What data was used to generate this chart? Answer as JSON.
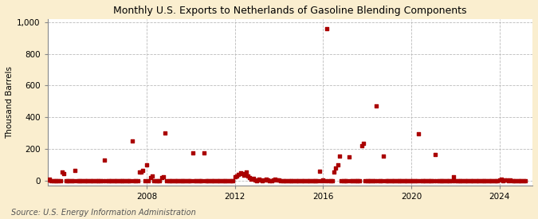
{
  "title": "Monthly U.S. Exports to Netherlands of Gasoline Blending Components",
  "ylabel": "Thousand Barrels",
  "source": "Source: U.S. Energy Information Administration",
  "xlim": [
    2003.5,
    2025.5
  ],
  "ylim": [
    -30,
    1020
  ],
  "yticks": [
    0,
    200,
    400,
    600,
    800,
    1000
  ],
  "ytick_labels": [
    "0",
    "200",
    "400",
    "600",
    "800",
    "1,000"
  ],
  "xticks": [
    2008,
    2012,
    2016,
    2020,
    2024
  ],
  "background_color": "#faeecf",
  "plot_bg_color": "#ffffff",
  "dot_color": "#aa0000",
  "dot_size": 9,
  "data_points": [
    [
      2003.0,
      0
    ],
    [
      2003.083,
      0
    ],
    [
      2003.167,
      0
    ],
    [
      2003.25,
      0
    ],
    [
      2003.333,
      2
    ],
    [
      2003.417,
      0
    ],
    [
      2003.5,
      5
    ],
    [
      2003.583,
      8
    ],
    [
      2003.667,
      0
    ],
    [
      2003.75,
      0
    ],
    [
      2003.833,
      0
    ],
    [
      2003.917,
      0
    ],
    [
      2004.0,
      0
    ],
    [
      2004.083,
      0
    ],
    [
      2004.167,
      55
    ],
    [
      2004.25,
      45
    ],
    [
      2004.333,
      0
    ],
    [
      2004.417,
      0
    ],
    [
      2004.5,
      0
    ],
    [
      2004.583,
      0
    ],
    [
      2004.667,
      0
    ],
    [
      2004.75,
      65
    ],
    [
      2004.833,
      0
    ],
    [
      2004.917,
      0
    ],
    [
      2005.0,
      0
    ],
    [
      2005.083,
      0
    ],
    [
      2005.167,
      0
    ],
    [
      2005.25,
      0
    ],
    [
      2005.333,
      0
    ],
    [
      2005.417,
      0
    ],
    [
      2005.5,
      0
    ],
    [
      2005.583,
      0
    ],
    [
      2005.667,
      0
    ],
    [
      2005.75,
      0
    ],
    [
      2005.833,
      0
    ],
    [
      2005.917,
      0
    ],
    [
      2006.0,
      0
    ],
    [
      2006.083,
      130
    ],
    [
      2006.167,
      0
    ],
    [
      2006.25,
      0
    ],
    [
      2006.333,
      0
    ],
    [
      2006.417,
      0
    ],
    [
      2006.5,
      0
    ],
    [
      2006.583,
      0
    ],
    [
      2006.667,
      0
    ],
    [
      2006.75,
      0
    ],
    [
      2006.833,
      0
    ],
    [
      2006.917,
      0
    ],
    [
      2007.0,
      0
    ],
    [
      2007.083,
      0
    ],
    [
      2007.167,
      0
    ],
    [
      2007.25,
      0
    ],
    [
      2007.333,
      250
    ],
    [
      2007.417,
      0
    ],
    [
      2007.5,
      0
    ],
    [
      2007.583,
      0
    ],
    [
      2007.667,
      55
    ],
    [
      2007.75,
      55
    ],
    [
      2007.833,
      65
    ],
    [
      2007.917,
      0
    ],
    [
      2008.0,
      100
    ],
    [
      2008.083,
      0
    ],
    [
      2008.167,
      20
    ],
    [
      2008.25,
      30
    ],
    [
      2008.333,
      0
    ],
    [
      2008.417,
      0
    ],
    [
      2008.5,
      0
    ],
    [
      2008.583,
      0
    ],
    [
      2008.667,
      20
    ],
    [
      2008.75,
      25
    ],
    [
      2008.833,
      300
    ],
    [
      2008.917,
      0
    ],
    [
      2009.0,
      0
    ],
    [
      2009.083,
      0
    ],
    [
      2009.167,
      0
    ],
    [
      2009.25,
      0
    ],
    [
      2009.333,
      0
    ],
    [
      2009.417,
      0
    ],
    [
      2009.5,
      0
    ],
    [
      2009.583,
      0
    ],
    [
      2009.667,
      0
    ],
    [
      2009.75,
      0
    ],
    [
      2009.833,
      0
    ],
    [
      2009.917,
      0
    ],
    [
      2010.0,
      0
    ],
    [
      2010.083,
      175
    ],
    [
      2010.167,
      0
    ],
    [
      2010.25,
      0
    ],
    [
      2010.333,
      0
    ],
    [
      2010.417,
      0
    ],
    [
      2010.5,
      0
    ],
    [
      2010.583,
      175
    ],
    [
      2010.667,
      0
    ],
    [
      2010.75,
      0
    ],
    [
      2010.833,
      0
    ],
    [
      2010.917,
      0
    ],
    [
      2011.0,
      0
    ],
    [
      2011.083,
      0
    ],
    [
      2011.167,
      0
    ],
    [
      2011.25,
      0
    ],
    [
      2011.333,
      0
    ],
    [
      2011.417,
      0
    ],
    [
      2011.5,
      0
    ],
    [
      2011.583,
      0
    ],
    [
      2011.667,
      0
    ],
    [
      2011.75,
      0
    ],
    [
      2011.833,
      0
    ],
    [
      2011.917,
      0
    ],
    [
      2012.0,
      25
    ],
    [
      2012.083,
      30
    ],
    [
      2012.167,
      40
    ],
    [
      2012.25,
      50
    ],
    [
      2012.333,
      45
    ],
    [
      2012.417,
      35
    ],
    [
      2012.5,
      55
    ],
    [
      2012.583,
      30
    ],
    [
      2012.667,
      20
    ],
    [
      2012.75,
      10
    ],
    [
      2012.833,
      15
    ],
    [
      2012.917,
      5
    ],
    [
      2013.0,
      0
    ],
    [
      2013.083,
      10
    ],
    [
      2013.167,
      5
    ],
    [
      2013.25,
      0
    ],
    [
      2013.333,
      5
    ],
    [
      2013.417,
      10
    ],
    [
      2013.5,
      5
    ],
    [
      2013.583,
      0
    ],
    [
      2013.667,
      0
    ],
    [
      2013.75,
      5
    ],
    [
      2013.833,
      10
    ],
    [
      2013.917,
      5
    ],
    [
      2014.0,
      5
    ],
    [
      2014.083,
      0
    ],
    [
      2014.167,
      0
    ],
    [
      2014.25,
      0
    ],
    [
      2014.333,
      0
    ],
    [
      2014.417,
      0
    ],
    [
      2014.5,
      0
    ],
    [
      2014.583,
      0
    ],
    [
      2014.667,
      0
    ],
    [
      2014.75,
      0
    ],
    [
      2014.833,
      0
    ],
    [
      2014.917,
      0
    ],
    [
      2015.0,
      0
    ],
    [
      2015.083,
      0
    ],
    [
      2015.167,
      0
    ],
    [
      2015.25,
      0
    ],
    [
      2015.333,
      0
    ],
    [
      2015.417,
      0
    ],
    [
      2015.5,
      0
    ],
    [
      2015.583,
      0
    ],
    [
      2015.667,
      0
    ],
    [
      2015.75,
      0
    ],
    [
      2015.833,
      60
    ],
    [
      2015.917,
      0
    ],
    [
      2016.0,
      5
    ],
    [
      2016.083,
      0
    ],
    [
      2016.167,
      960
    ],
    [
      2016.25,
      0
    ],
    [
      2016.333,
      0
    ],
    [
      2016.417,
      0
    ],
    [
      2016.5,
      55
    ],
    [
      2016.583,
      80
    ],
    [
      2016.667,
      100
    ],
    [
      2016.75,
      155
    ],
    [
      2016.833,
      0
    ],
    [
      2016.917,
      0
    ],
    [
      2017.0,
      0
    ],
    [
      2017.083,
      0
    ],
    [
      2017.167,
      150
    ],
    [
      2017.25,
      0
    ],
    [
      2017.333,
      0
    ],
    [
      2017.417,
      0
    ],
    [
      2017.5,
      0
    ],
    [
      2017.583,
      0
    ],
    [
      2017.667,
      0
    ],
    [
      2017.75,
      220
    ],
    [
      2017.833,
      235
    ],
    [
      2017.917,
      0
    ],
    [
      2018.0,
      0
    ],
    [
      2018.083,
      0
    ],
    [
      2018.167,
      0
    ],
    [
      2018.25,
      0
    ],
    [
      2018.333,
      0
    ],
    [
      2018.417,
      470
    ],
    [
      2018.5,
      0
    ],
    [
      2018.583,
      0
    ],
    [
      2018.667,
      0
    ],
    [
      2018.75,
      155
    ],
    [
      2018.833,
      0
    ],
    [
      2018.917,
      0
    ],
    [
      2019.0,
      0
    ],
    [
      2019.083,
      0
    ],
    [
      2019.167,
      0
    ],
    [
      2019.25,
      0
    ],
    [
      2019.333,
      0
    ],
    [
      2019.417,
      0
    ],
    [
      2019.5,
      0
    ],
    [
      2019.583,
      0
    ],
    [
      2019.667,
      0
    ],
    [
      2019.75,
      0
    ],
    [
      2019.833,
      0
    ],
    [
      2019.917,
      0
    ],
    [
      2020.0,
      0
    ],
    [
      2020.083,
      0
    ],
    [
      2020.167,
      0
    ],
    [
      2020.25,
      0
    ],
    [
      2020.333,
      295
    ],
    [
      2020.417,
      0
    ],
    [
      2020.5,
      0
    ],
    [
      2020.583,
      0
    ],
    [
      2020.667,
      0
    ],
    [
      2020.75,
      0
    ],
    [
      2020.833,
      0
    ],
    [
      2020.917,
      0
    ],
    [
      2021.0,
      0
    ],
    [
      2021.083,
      165
    ],
    [
      2021.167,
      0
    ],
    [
      2021.25,
      0
    ],
    [
      2021.333,
      0
    ],
    [
      2021.417,
      0
    ],
    [
      2021.5,
      0
    ],
    [
      2021.583,
      0
    ],
    [
      2021.667,
      0
    ],
    [
      2021.75,
      0
    ],
    [
      2021.833,
      0
    ],
    [
      2021.917,
      25
    ],
    [
      2022.0,
      0
    ],
    [
      2022.083,
      0
    ],
    [
      2022.167,
      0
    ],
    [
      2022.25,
      0
    ],
    [
      2022.333,
      0
    ],
    [
      2022.417,
      0
    ],
    [
      2022.5,
      0
    ],
    [
      2022.583,
      0
    ],
    [
      2022.667,
      0
    ],
    [
      2022.75,
      0
    ],
    [
      2022.833,
      0
    ],
    [
      2022.917,
      0
    ],
    [
      2023.0,
      0
    ],
    [
      2023.083,
      0
    ],
    [
      2023.167,
      0
    ],
    [
      2023.25,
      0
    ],
    [
      2023.333,
      0
    ],
    [
      2023.417,
      0
    ],
    [
      2023.5,
      0
    ],
    [
      2023.583,
      0
    ],
    [
      2023.667,
      0
    ],
    [
      2023.75,
      0
    ],
    [
      2023.833,
      0
    ],
    [
      2023.917,
      0
    ],
    [
      2024.0,
      5
    ],
    [
      2024.083,
      10
    ],
    [
      2024.167,
      0
    ],
    [
      2024.25,
      5
    ],
    [
      2024.333,
      5
    ],
    [
      2024.417,
      0
    ],
    [
      2024.5,
      5
    ],
    [
      2024.583,
      0
    ],
    [
      2024.667,
      0
    ],
    [
      2024.75,
      0
    ],
    [
      2024.833,
      0
    ],
    [
      2024.917,
      0
    ],
    [
      2025.0,
      0
    ],
    [
      2025.083,
      0
    ],
    [
      2025.167,
      0
    ]
  ]
}
